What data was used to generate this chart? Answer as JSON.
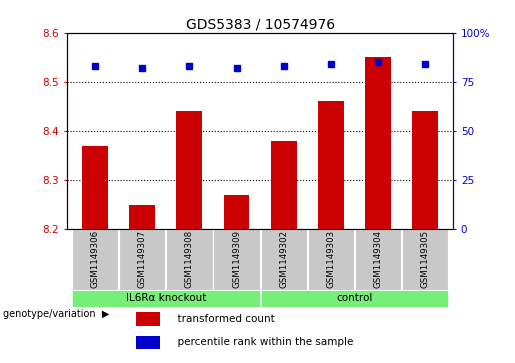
{
  "title": "GDS5383 / 10574976",
  "samples": [
    "GSM1149306",
    "GSM1149307",
    "GSM1149308",
    "GSM1149309",
    "GSM1149302",
    "GSM1149303",
    "GSM1149304",
    "GSM1149305"
  ],
  "bar_values": [
    8.37,
    8.25,
    8.44,
    8.27,
    8.38,
    8.46,
    8.55,
    8.44
  ],
  "percentile_values": [
    83,
    82,
    83,
    82,
    83,
    84,
    85,
    84
  ],
  "ylim_left": [
    8.2,
    8.6
  ],
  "ylim_right": [
    0,
    100
  ],
  "yticks_left": [
    8.2,
    8.3,
    8.4,
    8.5,
    8.6
  ],
  "yticks_right": [
    0,
    25,
    50,
    75,
    100
  ],
  "ytick_labels_right": [
    "0",
    "25",
    "50",
    "75",
    "100%"
  ],
  "bar_color": "#cc0000",
  "dot_color": "#0000cc",
  "groups": [
    {
      "label": "IL6Rα knockout",
      "start": 0,
      "end": 3,
      "color": "#77ee77"
    },
    {
      "label": "control",
      "start": 4,
      "end": 7,
      "color": "#77ee77"
    }
  ],
  "genotype_label": "genotype/variation",
  "legend_items": [
    {
      "color": "#cc0000",
      "label": "transformed count"
    },
    {
      "color": "#0000cc",
      "label": "percentile rank within the sample"
    }
  ],
  "bar_width": 0.55,
  "sample_box_color": "#c8c8c8",
  "plot_bg_color": "#ffffff",
  "fig_bg_color": "#ffffff"
}
